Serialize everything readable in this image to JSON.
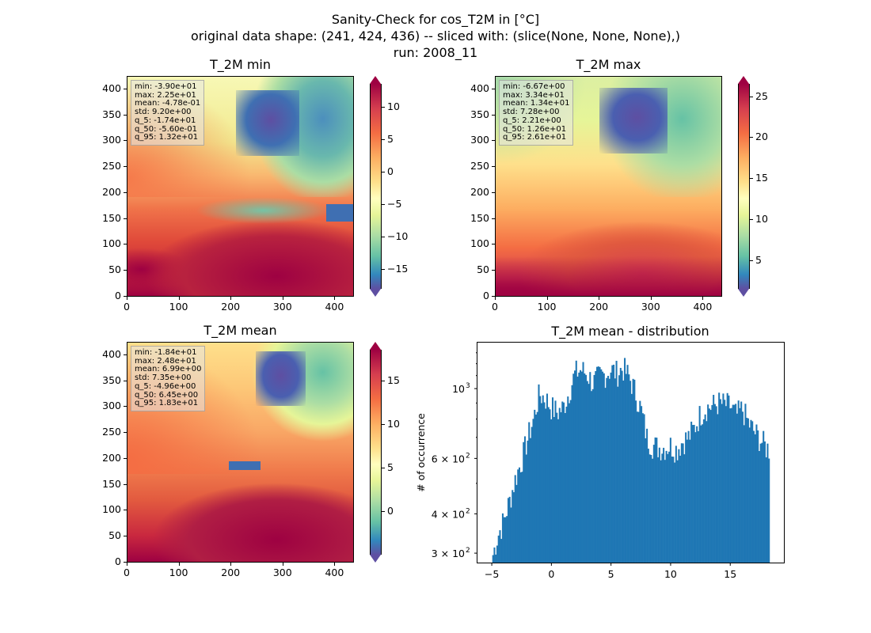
{
  "suptitle": {
    "line1": "Sanity-Check for cos_T2M in [°C]",
    "line2": "original data shape: (241, 424, 436) -- sliced with: (slice(None, None, None),)",
    "line3": "run: 2008_11"
  },
  "panels": [
    {
      "title": "T_2M min",
      "stats": [
        "min: -3.90e+01",
        "max: 2.25e+01",
        "mean: -4.78e-01",
        "std: 9.20e+00",
        "q_5: -1.74e+01",
        "q_50: -5.60e-01",
        "q_95: 1.32e+01"
      ],
      "xticks": [
        "0",
        "100",
        "200",
        "300",
        "400"
      ],
      "yticks": [
        "0",
        "50",
        "100",
        "150",
        "200",
        "250",
        "300",
        "350",
        "400"
      ],
      "cbar_ticks": [
        "10",
        "5",
        "0",
        "−5",
        "−10",
        "−15"
      ],
      "cbar_range": [
        -18,
        13.5
      ],
      "cbar_values": [
        10,
        5,
        0,
        -5,
        -10,
        -15
      ]
    },
    {
      "title": "T_2M max",
      "stats": [
        "min: -6.67e+00",
        "max: 3.34e+01",
        "mean: 1.34e+01",
        "std: 7.28e+00",
        "q_5: 2.21e+00",
        "q_50: 1.26e+01",
        "q_95: 2.61e+01"
      ],
      "xticks": [
        "0",
        "100",
        "200",
        "300",
        "400"
      ],
      "yticks": [
        "0",
        "50",
        "100",
        "150",
        "200",
        "250",
        "300",
        "350",
        "400"
      ],
      "cbar_ticks": [
        "25",
        "20",
        "15",
        "10",
        "5"
      ],
      "cbar_range": [
        1.5,
        26.5
      ],
      "cbar_values": [
        25,
        20,
        15,
        10,
        5
      ]
    },
    {
      "title": "T_2M mean",
      "stats": [
        "min: -1.84e+01",
        "max: 2.48e+01",
        "mean: 6.99e+00",
        "std: 7.35e+00",
        "q_5: -4.96e+00",
        "q_50: 6.45e+00",
        "q_95: 1.83e+01"
      ],
      "xticks": [
        "0",
        "100",
        "200",
        "300",
        "400"
      ],
      "yticks": [
        "0",
        "50",
        "100",
        "150",
        "200",
        "250",
        "300",
        "350",
        "400"
      ],
      "cbar_ticks": [
        "15",
        "10",
        "5",
        "0"
      ],
      "cbar_range": [
        -5,
        18.5
      ],
      "cbar_values": [
        15,
        10,
        5,
        0
      ]
    }
  ],
  "chart_data": {
    "type": "bar",
    "title": "T_2M mean - distribution",
    "xlabel": "",
    "ylabel": "# of occurrence",
    "yscale": "log",
    "xlim": [
      -6.2,
      19.5
    ],
    "ylim": [
      280,
      1400
    ],
    "xticks": [
      "−5",
      "0",
      "5",
      "10",
      "15"
    ],
    "xtick_values": [
      -5,
      0,
      5,
      10,
      15
    ],
    "yticks": [
      "10",
      "6 × 10",
      "4 × 10",
      "3 × 10"
    ],
    "ytick_exps": [
      "3",
      "2",
      "2",
      "2"
    ],
    "ytick_values": [
      1000,
      600,
      400,
      300
    ],
    "bin_start": -4.96,
    "bin_end": 18.3,
    "profile_x": [
      -4.96,
      -4.5,
      -4,
      -3.5,
      -3,
      -2.5,
      -2,
      -1.5,
      -1,
      -0.5,
      0,
      0.5,
      1,
      1.5,
      2,
      2.5,
      3,
      3.5,
      4,
      4.5,
      5,
      5.5,
      6,
      6.5,
      7,
      7.5,
      8,
      8.5,
      9,
      9.5,
      10,
      10.5,
      11,
      11.5,
      12,
      12.5,
      13,
      13.5,
      14,
      14.5,
      15,
      15.5,
      16,
      16.5,
      17,
      17.5,
      18,
      18.3
    ],
    "profile_y": [
      290,
      340,
      380,
      440,
      520,
      590,
      690,
      800,
      960,
      930,
      870,
      840,
      870,
      980,
      1120,
      1150,
      1110,
      1040,
      1090,
      1110,
      1150,
      1120,
      1160,
      1090,
      980,
      860,
      700,
      660,
      650,
      650,
      660,
      640,
      680,
      700,
      750,
      830,
      870,
      880,
      900,
      890,
      880,
      820,
      860,
      780,
      730,
      690,
      650,
      640
    ]
  }
}
